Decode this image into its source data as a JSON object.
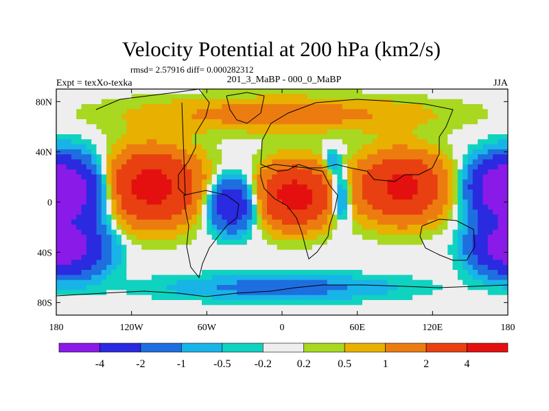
{
  "chart_data": {
    "type": "heatmap",
    "title": "Velocity Potential at 200 hPa (km2/s)",
    "stats_text": "rmsd= 2.57916 diff= 0.000282312",
    "left_label": "Expt = texXo-texka",
    "center_label": "201_3_MaBP - 000_0_MaBP",
    "right_label": "JJA",
    "x_axis": {
      "range": [
        -180,
        180
      ],
      "ticks": [
        {
          "value": -180,
          "label": "180"
        },
        {
          "value": -120,
          "label": "120W"
        },
        {
          "value": -60,
          "label": "60W"
        },
        {
          "value": 0,
          "label": "0"
        },
        {
          "value": 60,
          "label": "60E"
        },
        {
          "value": 120,
          "label": "120E"
        },
        {
          "value": 180,
          "label": "180"
        }
      ]
    },
    "y_axis": {
      "range": [
        -90,
        90
      ],
      "ticks": [
        {
          "value": 80,
          "label": "80N"
        },
        {
          "value": 40,
          "label": "40N"
        },
        {
          "value": 0,
          "label": "0"
        },
        {
          "value": -40,
          "label": "40S"
        },
        {
          "value": -80,
          "label": "80S"
        }
      ]
    },
    "colorbar": {
      "levels": [
        -4,
        -2,
        -1,
        -0.5,
        -0.2,
        0.2,
        0.5,
        1,
        2,
        4
      ],
      "labels": [
        "-4",
        "-2",
        "-1",
        "-0.5",
        "-0.2",
        "0.2",
        "0.5",
        "1",
        "2",
        "4"
      ],
      "colors": [
        "#8a1ae8",
        "#2a2ae0",
        "#1e6ee0",
        "#18b4e8",
        "#10d2c0",
        "#eeeeee",
        "#a8d820",
        "#e8b000",
        "#ec7c10",
        "#e84010",
        "#e41010"
      ]
    },
    "field_features": [
      {
        "lon": -105,
        "lat": 12,
        "value": 5.0,
        "lon_width": 38,
        "lat_width": 28
      },
      {
        "lon": 10,
        "lat": 5,
        "value": 5.0,
        "lon_width": 28,
        "lat_width": 24
      },
      {
        "lon": 95,
        "lat": 12,
        "value": 4.6,
        "lon_width": 34,
        "lat_width": 26
      },
      {
        "lon": -165,
        "lat": 8,
        "value": -4.8,
        "lon_width": 28,
        "lat_width": 26
      },
      {
        "lon": -165,
        "lat": -38,
        "value": -4.2,
        "lon_width": 26,
        "lat_width": 20
      },
      {
        "lon": -40,
        "lat": -2,
        "value": -4.0,
        "lon_width": 18,
        "lat_width": 20
      },
      {
        "lon": 172,
        "lat": 12,
        "value": -4.6,
        "lon_width": 24,
        "lat_width": 22
      },
      {
        "lon": 170,
        "lat": -35,
        "value": -3.4,
        "lon_width": 22,
        "lat_width": 20
      },
      {
        "lon": 47,
        "lat": 5,
        "value": -2.4,
        "lon_width": 8,
        "lat_width": 20
      },
      {
        "lon": 40,
        "lat": 32,
        "value": -1.4,
        "lon_width": 6,
        "lat_width": 10
      },
      {
        "lon": 0,
        "lat": -68,
        "value": -1.4,
        "lon_width": 90,
        "lat_width": 10
      },
      {
        "lon": 0,
        "lat": 70,
        "value": 1.4,
        "lon_width": 120,
        "lat_width": 14
      }
    ]
  }
}
